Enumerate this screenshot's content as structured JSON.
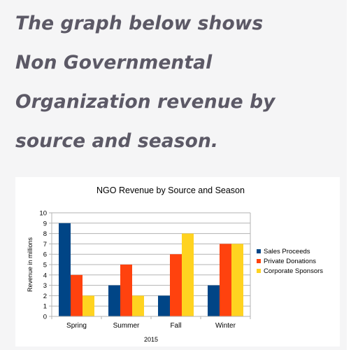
{
  "heading": {
    "lines": [
      "The graph below shows",
      "Non Governmental",
      "Organization revenue by",
      "source and season."
    ]
  },
  "chart_data": {
    "type": "bar",
    "title": "NGO Revenue by Source and Season",
    "xlabel": "2015",
    "ylabel": "Revenue in millions",
    "categories": [
      "Spring",
      "Summer",
      "Fall",
      "Winter"
    ],
    "series": [
      {
        "name": "Sales Proceeds",
        "values": [
          9,
          3,
          2,
          3
        ],
        "color": "#004586"
      },
      {
        "name": "Private Donations",
        "values": [
          4,
          5,
          6,
          7
        ],
        "color": "#ff420e"
      },
      {
        "name": "Corporate Sponsors",
        "values": [
          2,
          2,
          8,
          7
        ],
        "color": "#ffd320"
      }
    ],
    "ylim": [
      0,
      10
    ],
    "yticks": [
      0,
      1,
      2,
      3,
      4,
      5,
      6,
      7,
      8,
      9,
      10
    ],
    "grid": true,
    "legend_position": "right"
  }
}
